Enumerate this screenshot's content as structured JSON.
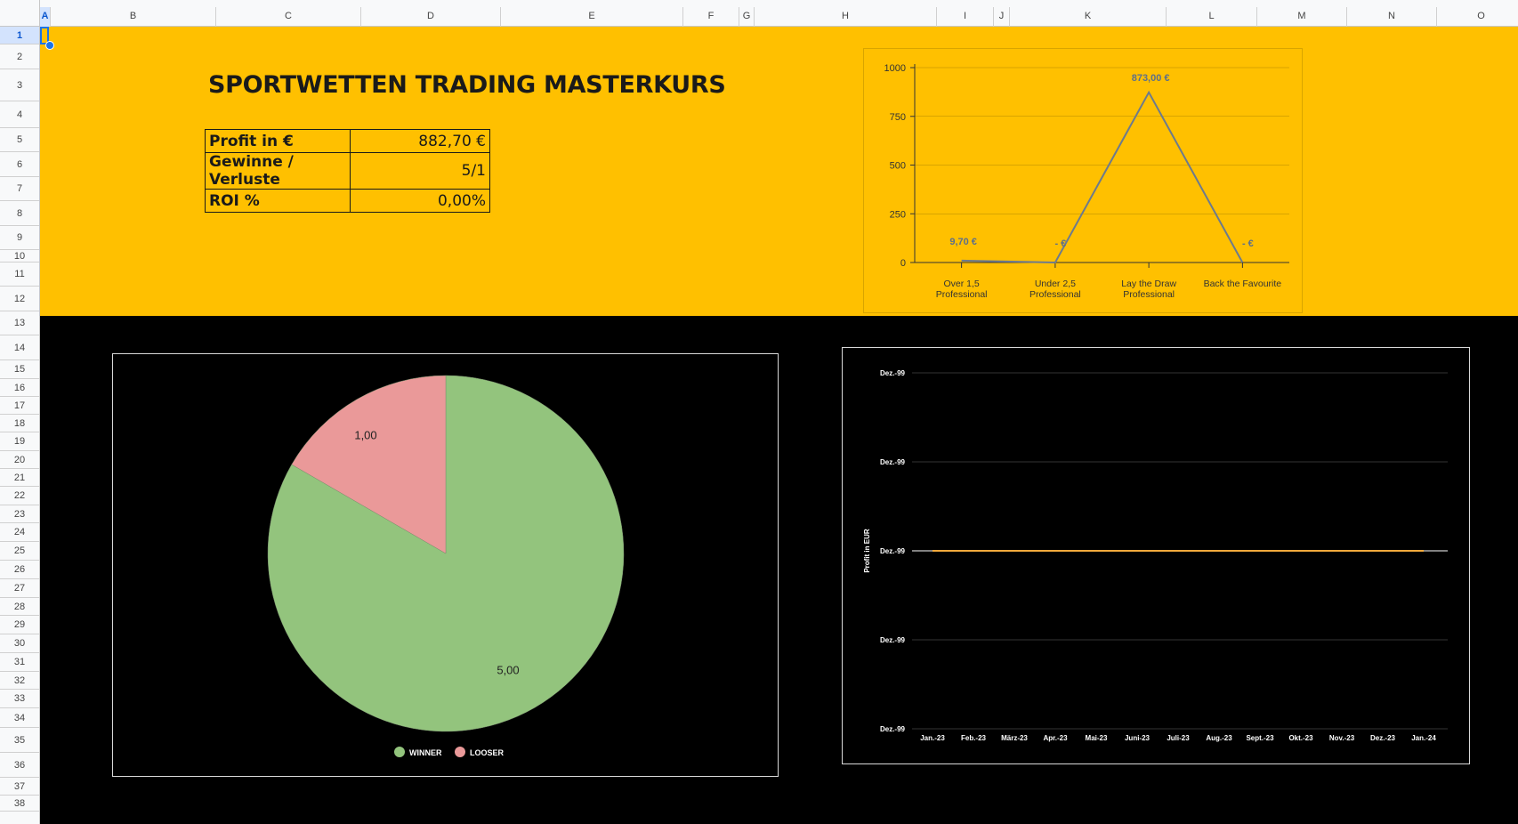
{
  "sheet": {
    "columns": [
      "A",
      "B",
      "C",
      "D",
      "E",
      "F",
      "G",
      "H",
      "I",
      "J",
      "K",
      "L",
      "M",
      "N",
      "O"
    ],
    "selected_column": "A",
    "rows": [
      "1",
      "2",
      "3",
      "4",
      "5",
      "6",
      "7",
      "8",
      "9",
      "10",
      "11",
      "12",
      "13",
      "14",
      "15",
      "16",
      "17",
      "18",
      "19",
      "20",
      "21",
      "22",
      "23",
      "24",
      "25",
      "26",
      "27",
      "28",
      "29",
      "30",
      "31",
      "32",
      "33",
      "34",
      "35",
      "36",
      "37",
      "38"
    ],
    "selected_row": "1"
  },
  "header": {
    "title": "SPORTWETTEN TRADING MASTERKURS",
    "band_color": "#ffc000"
  },
  "kpis": [
    {
      "label": "Profit in €",
      "value": "882,70 €"
    },
    {
      "label": "Gewinne / Verluste",
      "value": "5/1"
    },
    {
      "label": "ROI %",
      "value": "0,00%"
    }
  ],
  "chart_data": [
    {
      "type": "line",
      "categories": [
        [
          "Over 1,5",
          "Professional"
        ],
        [
          "Under 2,5",
          "Professional"
        ],
        [
          "Lay the Draw",
          "Professional"
        ],
        [
          "Back the Favourite"
        ]
      ],
      "series": [
        {
          "values": [
            9.7,
            0,
            873,
            0
          ],
          "color": "#6d7a8d"
        }
      ],
      "data_labels": [
        "9,70 €",
        "-   €",
        "873,00 €",
        "-   €"
      ],
      "ylim": [
        0,
        1000
      ],
      "yticks": [
        "0",
        "250",
        "500",
        "750",
        "1000"
      ],
      "grid": true
    },
    {
      "type": "pie",
      "slices": [
        {
          "name": "WINNER",
          "value": 5,
          "label": "5,00",
          "color": "#93c47d"
        },
        {
          "name": "LOOSER",
          "value": 1,
          "label": "1,00",
          "color": "#ea9999"
        }
      ],
      "legend": "bottom"
    },
    {
      "type": "line",
      "categories": [
        "Jan.-23",
        "Feb.-23",
        "März-23",
        "Apr.-23",
        "Mai-23",
        "Juni-23",
        "Juli-23",
        "Aug.-23",
        "Sept.-23",
        "Okt.-23",
        "Nov.-23",
        "Dez.-23",
        "Jan.-24"
      ],
      "series": [
        {
          "values": [
            0,
            0,
            0,
            0,
            0,
            0,
            0,
            0,
            0,
            0,
            0,
            0,
            0
          ],
          "color": "#f1a93b"
        }
      ],
      "ylabel": "Profit in EUR",
      "yticks": [
        "Dez.-99",
        "Dez.-99",
        "Dez.-99",
        "Dez.-99",
        "Dez.-99"
      ],
      "grid": true
    }
  ]
}
